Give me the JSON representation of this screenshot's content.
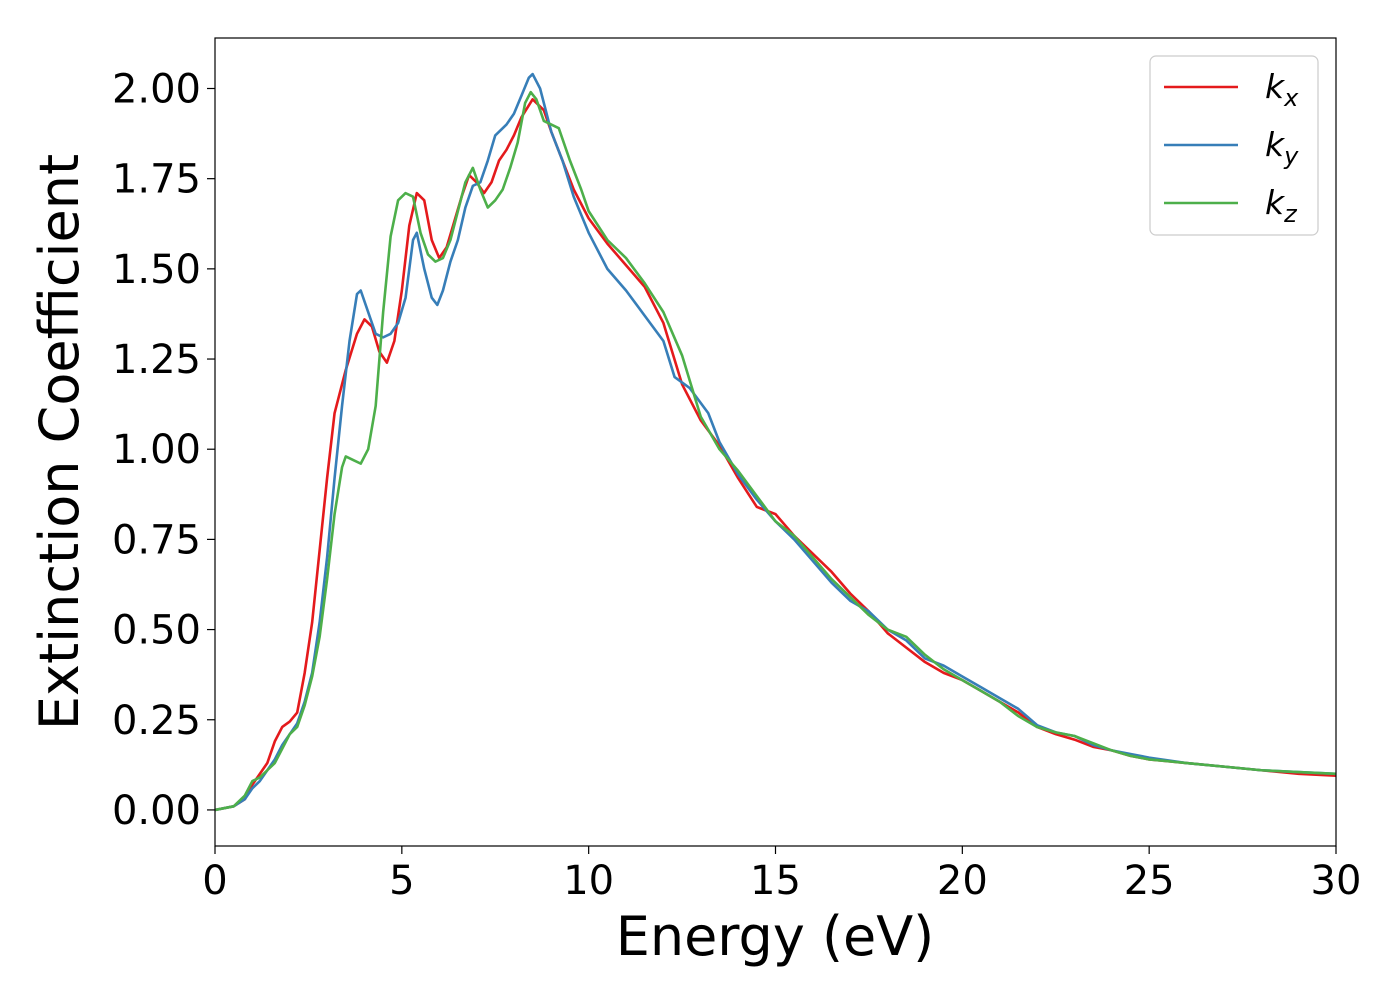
{
  "chart_data": {
    "type": "line",
    "title": "",
    "xlabel": "Energy (eV)",
    "ylabel": "Extinction Coefficient",
    "xlim": [
      0,
      30
    ],
    "ylim": [
      -0.1,
      2.14
    ],
    "xticks": [
      0,
      5,
      10,
      15,
      20,
      25,
      30
    ],
    "yticks": [
      0.0,
      0.25,
      0.5,
      0.75,
      1.0,
      1.25,
      1.5,
      1.75,
      2.0
    ],
    "grid": false,
    "legend_position": "top-right",
    "series": [
      {
        "name": "kx",
        "label_main": "k",
        "label_sub": "x",
        "color": "#e41a1c",
        "points": [
          [
            0,
            0
          ],
          [
            0.5,
            0.01
          ],
          [
            0.8,
            0.03
          ],
          [
            1.0,
            0.07
          ],
          [
            1.2,
            0.1
          ],
          [
            1.4,
            0.13
          ],
          [
            1.6,
            0.19
          ],
          [
            1.8,
            0.23
          ],
          [
            2.0,
            0.245
          ],
          [
            2.2,
            0.27
          ],
          [
            2.4,
            0.38
          ],
          [
            2.6,
            0.52
          ],
          [
            2.8,
            0.72
          ],
          [
            3.0,
            0.92
          ],
          [
            3.2,
            1.1
          ],
          [
            3.5,
            1.22
          ],
          [
            3.8,
            1.32
          ],
          [
            4.0,
            1.36
          ],
          [
            4.2,
            1.34
          ],
          [
            4.4,
            1.27
          ],
          [
            4.6,
            1.24
          ],
          [
            4.8,
            1.3
          ],
          [
            5.0,
            1.44
          ],
          [
            5.2,
            1.62
          ],
          [
            5.4,
            1.71
          ],
          [
            5.6,
            1.69
          ],
          [
            5.8,
            1.58
          ],
          [
            6.0,
            1.53
          ],
          [
            6.2,
            1.56
          ],
          [
            6.4,
            1.63
          ],
          [
            6.6,
            1.7
          ],
          [
            6.8,
            1.76
          ],
          [
            7.0,
            1.74
          ],
          [
            7.2,
            1.71
          ],
          [
            7.4,
            1.74
          ],
          [
            7.6,
            1.8
          ],
          [
            7.8,
            1.83
          ],
          [
            8.0,
            1.87
          ],
          [
            8.2,
            1.92
          ],
          [
            8.5,
            1.97
          ],
          [
            8.8,
            1.94
          ],
          [
            9.0,
            1.88
          ],
          [
            9.3,
            1.8
          ],
          [
            9.6,
            1.72
          ],
          [
            10.0,
            1.64
          ],
          [
            10.5,
            1.57
          ],
          [
            11.0,
            1.51
          ],
          [
            11.5,
            1.45
          ],
          [
            12.0,
            1.35
          ],
          [
            12.5,
            1.18
          ],
          [
            13.0,
            1.08
          ],
          [
            13.5,
            1.01
          ],
          [
            14.0,
            0.92
          ],
          [
            14.5,
            0.84
          ],
          [
            15.0,
            0.82
          ],
          [
            15.5,
            0.76
          ],
          [
            16.0,
            0.71
          ],
          [
            16.5,
            0.66
          ],
          [
            17.0,
            0.6
          ],
          [
            17.5,
            0.55
          ],
          [
            18.0,
            0.49
          ],
          [
            18.5,
            0.45
          ],
          [
            19.0,
            0.41
          ],
          [
            19.5,
            0.38
          ],
          [
            20.0,
            0.36
          ],
          [
            20.5,
            0.33
          ],
          [
            21.0,
            0.3
          ],
          [
            21.5,
            0.27
          ],
          [
            22.0,
            0.23
          ],
          [
            22.5,
            0.21
          ],
          [
            23.0,
            0.195
          ],
          [
            23.5,
            0.175
          ],
          [
            24.0,
            0.165
          ],
          [
            24.5,
            0.15
          ],
          [
            25.0,
            0.14
          ],
          [
            25.5,
            0.135
          ],
          [
            26.0,
            0.13
          ],
          [
            27.0,
            0.12
          ],
          [
            28.0,
            0.11
          ],
          [
            29.0,
            0.1
          ],
          [
            30.0,
            0.095
          ]
        ]
      },
      {
        "name": "ky",
        "label_main": "k",
        "label_sub": "y",
        "color": "#377eb8",
        "points": [
          [
            0,
            0
          ],
          [
            0.5,
            0.01
          ],
          [
            0.8,
            0.03
          ],
          [
            1.0,
            0.06
          ],
          [
            1.2,
            0.08
          ],
          [
            1.4,
            0.11
          ],
          [
            1.6,
            0.14
          ],
          [
            1.8,
            0.18
          ],
          [
            2.0,
            0.21
          ],
          [
            2.2,
            0.24
          ],
          [
            2.4,
            0.3
          ],
          [
            2.6,
            0.38
          ],
          [
            2.8,
            0.52
          ],
          [
            3.0,
            0.7
          ],
          [
            3.2,
            0.92
          ],
          [
            3.4,
            1.12
          ],
          [
            3.6,
            1.3
          ],
          [
            3.8,
            1.43
          ],
          [
            3.9,
            1.44
          ],
          [
            4.1,
            1.38
          ],
          [
            4.3,
            1.32
          ],
          [
            4.5,
            1.31
          ],
          [
            4.7,
            1.32
          ],
          [
            4.9,
            1.35
          ],
          [
            5.1,
            1.42
          ],
          [
            5.3,
            1.58
          ],
          [
            5.4,
            1.6
          ],
          [
            5.6,
            1.5
          ],
          [
            5.8,
            1.42
          ],
          [
            5.95,
            1.4
          ],
          [
            6.1,
            1.44
          ],
          [
            6.3,
            1.52
          ],
          [
            6.5,
            1.58
          ],
          [
            6.7,
            1.67
          ],
          [
            6.9,
            1.73
          ],
          [
            7.1,
            1.74
          ],
          [
            7.3,
            1.8
          ],
          [
            7.5,
            1.87
          ],
          [
            7.8,
            1.9
          ],
          [
            8.0,
            1.93
          ],
          [
            8.2,
            1.98
          ],
          [
            8.4,
            2.03
          ],
          [
            8.5,
            2.04
          ],
          [
            8.7,
            2.0
          ],
          [
            9.0,
            1.88
          ],
          [
            9.3,
            1.8
          ],
          [
            9.6,
            1.7
          ],
          [
            10.0,
            1.6
          ],
          [
            10.5,
            1.5
          ],
          [
            11.0,
            1.44
          ],
          [
            11.5,
            1.37
          ],
          [
            12.0,
            1.3
          ],
          [
            12.3,
            1.2
          ],
          [
            12.7,
            1.17
          ],
          [
            13.2,
            1.1
          ],
          [
            13.5,
            1.02
          ],
          [
            14.0,
            0.93
          ],
          [
            14.5,
            0.86
          ],
          [
            15.0,
            0.8
          ],
          [
            15.5,
            0.75
          ],
          [
            16.0,
            0.69
          ],
          [
            16.5,
            0.63
          ],
          [
            17.0,
            0.58
          ],
          [
            17.5,
            0.55
          ],
          [
            18.0,
            0.5
          ],
          [
            18.5,
            0.47
          ],
          [
            19.0,
            0.42
          ],
          [
            19.5,
            0.4
          ],
          [
            20.0,
            0.37
          ],
          [
            20.5,
            0.34
          ],
          [
            21.0,
            0.31
          ],
          [
            21.5,
            0.28
          ],
          [
            22.0,
            0.235
          ],
          [
            22.5,
            0.215
          ],
          [
            23.0,
            0.205
          ],
          [
            23.5,
            0.18
          ],
          [
            24.0,
            0.165
          ],
          [
            24.5,
            0.155
          ],
          [
            25.0,
            0.145
          ],
          [
            26.0,
            0.13
          ],
          [
            27.0,
            0.12
          ],
          [
            28.0,
            0.11
          ],
          [
            29.0,
            0.105
          ],
          [
            30.0,
            0.1
          ]
        ]
      },
      {
        "name": "kz",
        "label_main": "k",
        "label_sub": "z",
        "color": "#4daf4a",
        "points": [
          [
            0,
            0
          ],
          [
            0.5,
            0.01
          ],
          [
            0.8,
            0.04
          ],
          [
            1.0,
            0.08
          ],
          [
            1.2,
            0.09
          ],
          [
            1.4,
            0.11
          ],
          [
            1.6,
            0.13
          ],
          [
            1.8,
            0.17
          ],
          [
            2.0,
            0.21
          ],
          [
            2.2,
            0.23
          ],
          [
            2.4,
            0.29
          ],
          [
            2.6,
            0.37
          ],
          [
            2.8,
            0.48
          ],
          [
            3.0,
            0.64
          ],
          [
            3.2,
            0.82
          ],
          [
            3.4,
            0.95
          ],
          [
            3.5,
            0.98
          ],
          [
            3.7,
            0.97
          ],
          [
            3.9,
            0.96
          ],
          [
            4.1,
            1.0
          ],
          [
            4.3,
            1.12
          ],
          [
            4.5,
            1.38
          ],
          [
            4.7,
            1.59
          ],
          [
            4.9,
            1.69
          ],
          [
            5.1,
            1.71
          ],
          [
            5.3,
            1.7
          ],
          [
            5.5,
            1.6
          ],
          [
            5.7,
            1.54
          ],
          [
            5.9,
            1.52
          ],
          [
            6.1,
            1.53
          ],
          [
            6.3,
            1.58
          ],
          [
            6.5,
            1.66
          ],
          [
            6.7,
            1.74
          ],
          [
            6.9,
            1.78
          ],
          [
            7.1,
            1.72
          ],
          [
            7.3,
            1.67
          ],
          [
            7.5,
            1.69
          ],
          [
            7.7,
            1.72
          ],
          [
            7.9,
            1.78
          ],
          [
            8.1,
            1.85
          ],
          [
            8.3,
            1.96
          ],
          [
            8.45,
            1.99
          ],
          [
            8.6,
            1.97
          ],
          [
            8.8,
            1.91
          ],
          [
            9.0,
            1.9
          ],
          [
            9.2,
            1.89
          ],
          [
            9.5,
            1.8
          ],
          [
            9.8,
            1.72
          ],
          [
            10.0,
            1.66
          ],
          [
            10.5,
            1.58
          ],
          [
            11.0,
            1.53
          ],
          [
            11.5,
            1.46
          ],
          [
            12.0,
            1.38
          ],
          [
            12.5,
            1.26
          ],
          [
            13.0,
            1.09
          ],
          [
            13.5,
            1.0
          ],
          [
            14.0,
            0.94
          ],
          [
            14.5,
            0.87
          ],
          [
            15.0,
            0.8
          ],
          [
            15.5,
            0.76
          ],
          [
            16.0,
            0.7
          ],
          [
            16.5,
            0.64
          ],
          [
            17.0,
            0.59
          ],
          [
            17.5,
            0.54
          ],
          [
            18.0,
            0.5
          ],
          [
            18.5,
            0.48
          ],
          [
            19.0,
            0.43
          ],
          [
            19.5,
            0.39
          ],
          [
            20.0,
            0.36
          ],
          [
            20.5,
            0.33
          ],
          [
            21.0,
            0.3
          ],
          [
            21.5,
            0.26
          ],
          [
            22.0,
            0.23
          ],
          [
            22.5,
            0.215
          ],
          [
            23.0,
            0.205
          ],
          [
            23.5,
            0.185
          ],
          [
            24.0,
            0.165
          ],
          [
            24.5,
            0.15
          ],
          [
            25.0,
            0.14
          ],
          [
            25.5,
            0.135
          ],
          [
            26.0,
            0.13
          ],
          [
            27.0,
            0.12
          ],
          [
            28.0,
            0.11
          ],
          [
            29.0,
            0.105
          ],
          [
            30.0,
            0.1
          ]
        ]
      }
    ]
  }
}
